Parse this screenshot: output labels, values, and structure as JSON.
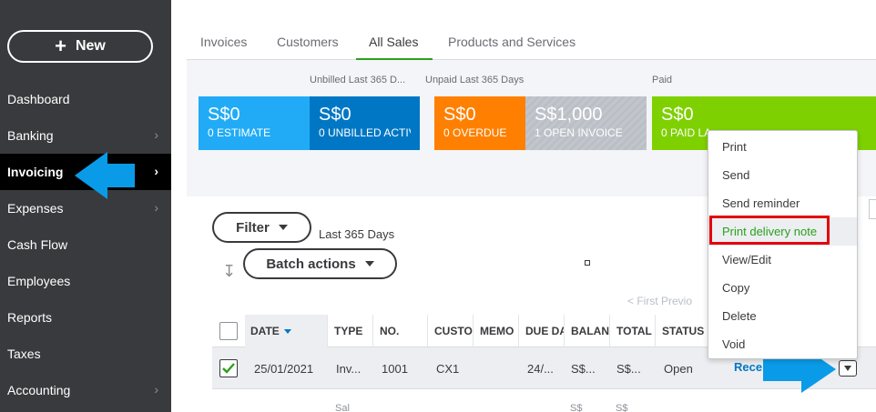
{
  "sidebar": {
    "new_label": "New",
    "items": [
      {
        "label": "Dashboard",
        "chevron": false
      },
      {
        "label": "Banking",
        "chevron": true
      },
      {
        "label": "Invoicing",
        "chevron": true,
        "active": true
      },
      {
        "label": "Expenses",
        "chevron": true
      },
      {
        "label": "Cash Flow",
        "chevron": false
      },
      {
        "label": "Employees",
        "chevron": false
      },
      {
        "label": "Reports",
        "chevron": false
      },
      {
        "label": "Taxes",
        "chevron": false
      },
      {
        "label": "Accounting",
        "chevron": true
      }
    ]
  },
  "tabs": [
    "Invoices",
    "Customers",
    "All Sales",
    "Products and Services"
  ],
  "active_tab": "All Sales",
  "money_bar": {
    "labels": {
      "unbilled": "Unbilled Last 365 D...",
      "unpaid": "Unpaid Last 365 Days",
      "paid": "Paid"
    },
    "cards": {
      "estimate": {
        "amount": "S$0",
        "sub": "0 ESTIMATE"
      },
      "unbilled": {
        "amount": "S$0",
        "sub": "0 UNBILLED ACTIV"
      },
      "overdue": {
        "amount": "S$0",
        "sub": "0 OVERDUE"
      },
      "open": {
        "amount": "S$1,000",
        "sub": "1 OPEN INVOICE"
      },
      "paid": {
        "amount": "S$0",
        "sub": "0 PAID LA"
      }
    },
    "colors": {
      "estimate": "#21abf6",
      "unbilled": "#0077c5",
      "overdue": "#ff8000",
      "open": "#babec5",
      "paid": "#7fd000"
    }
  },
  "filter": {
    "label": "Filter",
    "range": "Last 365 Days"
  },
  "batch_actions_label": "Batch actions",
  "pager": "< First   Previo",
  "table": {
    "headers": {
      "date": "DATE",
      "type": "TYPE",
      "no": "NO.",
      "customer": "CUSTO",
      "memo": "MEMO",
      "due": "DUE DA",
      "balance": "BALAN",
      "total": "TOTAL",
      "status": "STATUS"
    },
    "row": {
      "date": "25/01/2021",
      "type": "Inv...",
      "no": "1001",
      "customer": "CX1",
      "memo": "",
      "due": "24/...",
      "balance": "S$...",
      "total": "S$...",
      "status": "Open",
      "action": "Rece"
    },
    "next_row_partial": {
      "type": "Sal",
      "balance": "S$",
      "total": "S$"
    }
  },
  "row_menu": {
    "items": [
      "Print",
      "Send",
      "Send reminder",
      "Print delivery note",
      "View/Edit",
      "Copy",
      "Delete",
      "Void"
    ],
    "highlighted": "Print delivery note"
  }
}
